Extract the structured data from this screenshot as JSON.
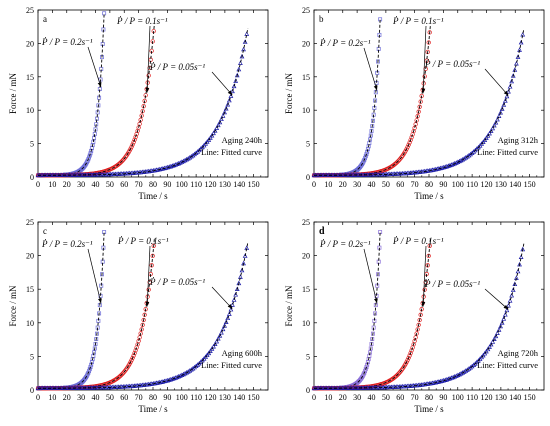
{
  "chart_data": [
    {
      "panel": "a",
      "type": "scatter",
      "xlabel": "Time / s",
      "ylabel": "Force / mN",
      "xlim": [
        0,
        160
      ],
      "ylim": [
        0,
        25
      ],
      "xticks": [
        0,
        10,
        20,
        30,
        40,
        50,
        60,
        70,
        80,
        90,
        100,
        110,
        120,
        130,
        140,
        150
      ],
      "yticks": [
        0,
        5,
        10,
        15,
        20,
        25
      ],
      "notes": [
        "Aging 240h",
        "Line: Fitted curve"
      ],
      "series": [
        {
          "name": "Ṗ / P = 0.2s⁻¹",
          "color": "#6b6bd6",
          "marker": "square",
          "x_end": 46,
          "y_end": 24.5,
          "rate": 0.2
        },
        {
          "name": "Ṗ / P = 0.1s⁻¹",
          "color": "#e02020",
          "marker": "circle",
          "x_end": 81,
          "y_end": 23.0,
          "rate": 0.1
        },
        {
          "name": "Ṗ / P = 0.05s⁻¹",
          "color": "#1a1aa8",
          "marker": "triangle",
          "x_end": 146,
          "y_end": 22.3,
          "rate": 0.05
        }
      ]
    },
    {
      "panel": "b",
      "type": "scatter",
      "xlabel": "Time / s",
      "ylabel": "Force / mN",
      "xlim": [
        0,
        160
      ],
      "ylim": [
        0,
        25
      ],
      "xticks": [
        0,
        10,
        20,
        30,
        40,
        50,
        60,
        70,
        80,
        90,
        100,
        110,
        120,
        130,
        140,
        150
      ],
      "yticks": [
        0,
        5,
        10,
        15,
        20,
        25
      ],
      "notes": [
        "Aging 312h",
        "Line: Fitted curve"
      ],
      "series": [
        {
          "name": "Ṗ / P = 0.2s⁻¹",
          "color": "#6b6bd6",
          "marker": "square",
          "x_end": 46,
          "y_end": 23.6,
          "rate": 0.2
        },
        {
          "name": "Ṗ / P = 0.1s⁻¹",
          "color": "#e02020",
          "marker": "circle",
          "x_end": 81,
          "y_end": 22.8,
          "rate": 0.1
        },
        {
          "name": "Ṗ / P = 0.05s⁻¹",
          "color": "#1a1aa8",
          "marker": "triangle",
          "x_end": 146,
          "y_end": 22.2,
          "rate": 0.05
        }
      ]
    },
    {
      "panel": "c",
      "type": "scatter",
      "xlabel": "Time / s",
      "ylabel": "Force / mN",
      "xlim": [
        0,
        160
      ],
      "ylim": [
        0,
        25
      ],
      "xticks": [
        0,
        10,
        20,
        30,
        40,
        50,
        60,
        70,
        80,
        90,
        100,
        110,
        120,
        130,
        140,
        150
      ],
      "yticks": [
        0,
        5,
        10,
        15,
        20,
        25
      ],
      "notes": [
        "Aging 600h",
        "Line: Fitted curve"
      ],
      "series": [
        {
          "name": "Ṗ / P = 0.2s⁻¹",
          "color": "#6b6bd6",
          "marker": "square",
          "x_end": 46,
          "y_end": 23.5,
          "rate": 0.2
        },
        {
          "name": "Ṗ / P = 0.1s⁻¹",
          "color": "#e02020",
          "marker": "circle",
          "x_end": 81,
          "y_end": 22.6,
          "rate": 0.1
        },
        {
          "name": "Ṗ / P = 0.05s⁻¹",
          "color": "#1a1aa8",
          "marker": "triangle",
          "x_end": 146,
          "y_end": 22.0,
          "rate": 0.05
        }
      ]
    },
    {
      "panel": "d",
      "type": "scatter",
      "xlabel": "Time / s",
      "ylabel": "Force / mN",
      "xlim": [
        0,
        160
      ],
      "ylim": [
        0,
        25
      ],
      "xticks": [
        0,
        10,
        20,
        30,
        40,
        50,
        60,
        70,
        80,
        90,
        100,
        110,
        120,
        130,
        140,
        150
      ],
      "yticks": [
        0,
        5,
        10,
        15,
        20,
        25
      ],
      "notes": [
        "Aging 720h",
        "Line: Fitted curve"
      ],
      "series": [
        {
          "name": "Ṗ / P = 0.2s⁻¹",
          "color": "#8a6fd8",
          "marker": "square",
          "x_end": 46,
          "y_end": 23.5,
          "rate": 0.2
        },
        {
          "name": "Ṗ / P = 0.1s⁻¹",
          "color": "#e02020",
          "marker": "circle",
          "x_end": 81,
          "y_end": 22.6,
          "rate": 0.1
        },
        {
          "name": "Ṗ / P = 0.05s⁻¹",
          "color": "#1a1aa8",
          "marker": "triangle",
          "x_end": 146,
          "y_end": 21.8,
          "rate": 0.05
        }
      ]
    }
  ]
}
